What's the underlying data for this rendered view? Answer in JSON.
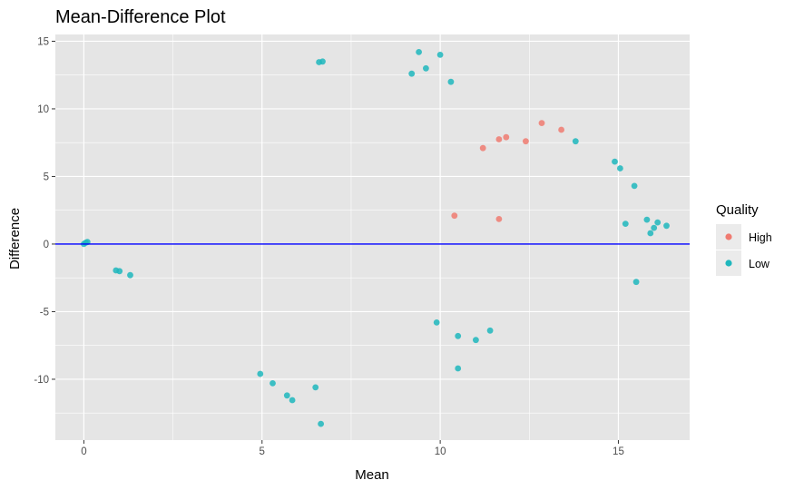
{
  "chart_data": {
    "type": "scatter",
    "title": "Mean-Difference Plot",
    "xlabel": "Mean",
    "ylabel": "Difference",
    "xlim": [
      -0.8,
      17.0
    ],
    "ylim": [
      -14.5,
      15.5
    ],
    "x_ticks": [
      0,
      5,
      10,
      15
    ],
    "y_ticks": [
      -10,
      -5,
      0,
      5,
      10,
      15
    ],
    "grid": true,
    "legend_position": "right",
    "legend_title": "Quality",
    "reference_line": {
      "y": 0,
      "color": "#0000ff"
    },
    "colors": {
      "panel_bg": "#e5e5e5",
      "grid": "#ffffff",
      "High": "#f07b71",
      "Low": "#1fb7bd"
    },
    "series": [
      {
        "name": "High",
        "points": [
          [
            10.4,
            2.1
          ],
          [
            11.65,
            1.85
          ],
          [
            11.65,
            7.75
          ],
          [
            11.85,
            7.9
          ],
          [
            12.85,
            8.95
          ],
          [
            13.4,
            8.45
          ],
          [
            11.2,
            7.1
          ],
          [
            12.4,
            7.6
          ]
        ]
      },
      {
        "name": "Low",
        "points": [
          [
            0.0,
            0.0
          ],
          [
            0.05,
            0.1
          ],
          [
            0.1,
            0.15
          ],
          [
            6.7,
            13.5
          ],
          [
            6.6,
            13.45
          ],
          [
            9.4,
            14.2
          ],
          [
            10.0,
            14.0
          ],
          [
            9.6,
            13.0
          ],
          [
            10.3,
            12.0
          ],
          [
            9.2,
            12.6
          ],
          [
            4.95,
            -9.6
          ],
          [
            5.3,
            -10.3
          ],
          [
            5.7,
            -11.2
          ],
          [
            5.85,
            -11.55
          ],
          [
            6.65,
            -13.3
          ],
          [
            6.5,
            -10.6
          ],
          [
            10.5,
            -6.8
          ],
          [
            10.5,
            -9.2
          ],
          [
            11.0,
            -7.1
          ],
          [
            11.4,
            -6.4
          ],
          [
            9.9,
            -5.8
          ],
          [
            1.0,
            -2.0
          ],
          [
            1.3,
            -2.3
          ],
          [
            0.9,
            -1.95
          ],
          [
            15.8,
            1.8
          ],
          [
            16.1,
            1.6
          ],
          [
            16.35,
            1.35
          ],
          [
            15.9,
            0.8
          ],
          [
            15.45,
            4.3
          ],
          [
            15.5,
            -2.8
          ],
          [
            16.0,
            1.2
          ],
          [
            15.2,
            1.5
          ],
          [
            14.9,
            6.1
          ],
          [
            13.8,
            7.6
          ],
          [
            15.05,
            5.6
          ]
        ]
      }
    ]
  }
}
